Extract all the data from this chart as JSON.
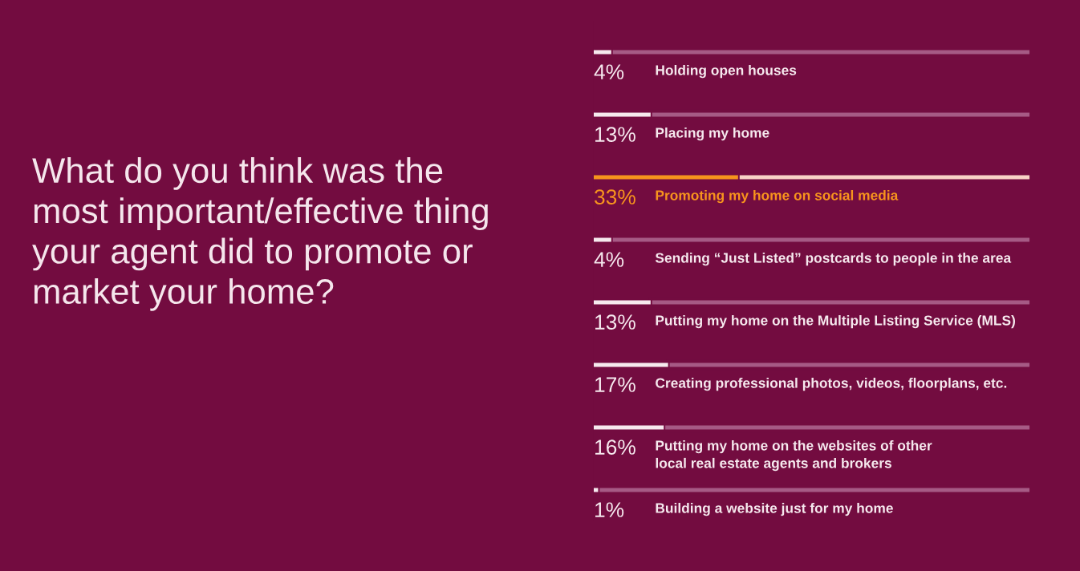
{
  "chart_data": {
    "type": "bar",
    "orientation": "horizontal",
    "stacked": true,
    "title": "What do you think was the\nmost important/effective thing\nyour agent did to promote or\nmarket your home?",
    "categories": [
      "Holding open houses",
      "Placing my home",
      "Promoting my home on social media",
      "Sending “Just Listed” postcards to people in the area",
      "Putting my home on the Multiple Listing Service (MLS)",
      "Creating professional photos, videos, floorplans, etc.",
      "Putting my home on the websites of other\nlocal real estate agents and brokers",
      "Building a website just for my home"
    ],
    "series": [
      {
        "colors": [
          "#f6e9ee",
          "#f6e9ee",
          "#f7941d",
          "#f6e9ee",
          "#f6e9ee",
          "#f6e9ee",
          "#f6e9ee",
          "#f6e9ee"
        ],
        "values": [
          4,
          13,
          33,
          4,
          13,
          17,
          16,
          1
        ],
        "value_labels": [
          "4%",
          "13%",
          "33%",
          "4%",
          "13%",
          "17%",
          "16%",
          "1%"
        ]
      },
      {
        "colors": [
          "#a65a85",
          "#a65a85",
          "#f8d3c6",
          "#a65a85",
          "#a65a85",
          "#a65a85",
          "#a65a85",
          "#a65a85"
        ],
        "values": [
          96,
          87,
          67,
          96,
          87,
          83,
          84,
          99
        ]
      }
    ],
    "xlim": [
      0,
      100
    ]
  }
}
